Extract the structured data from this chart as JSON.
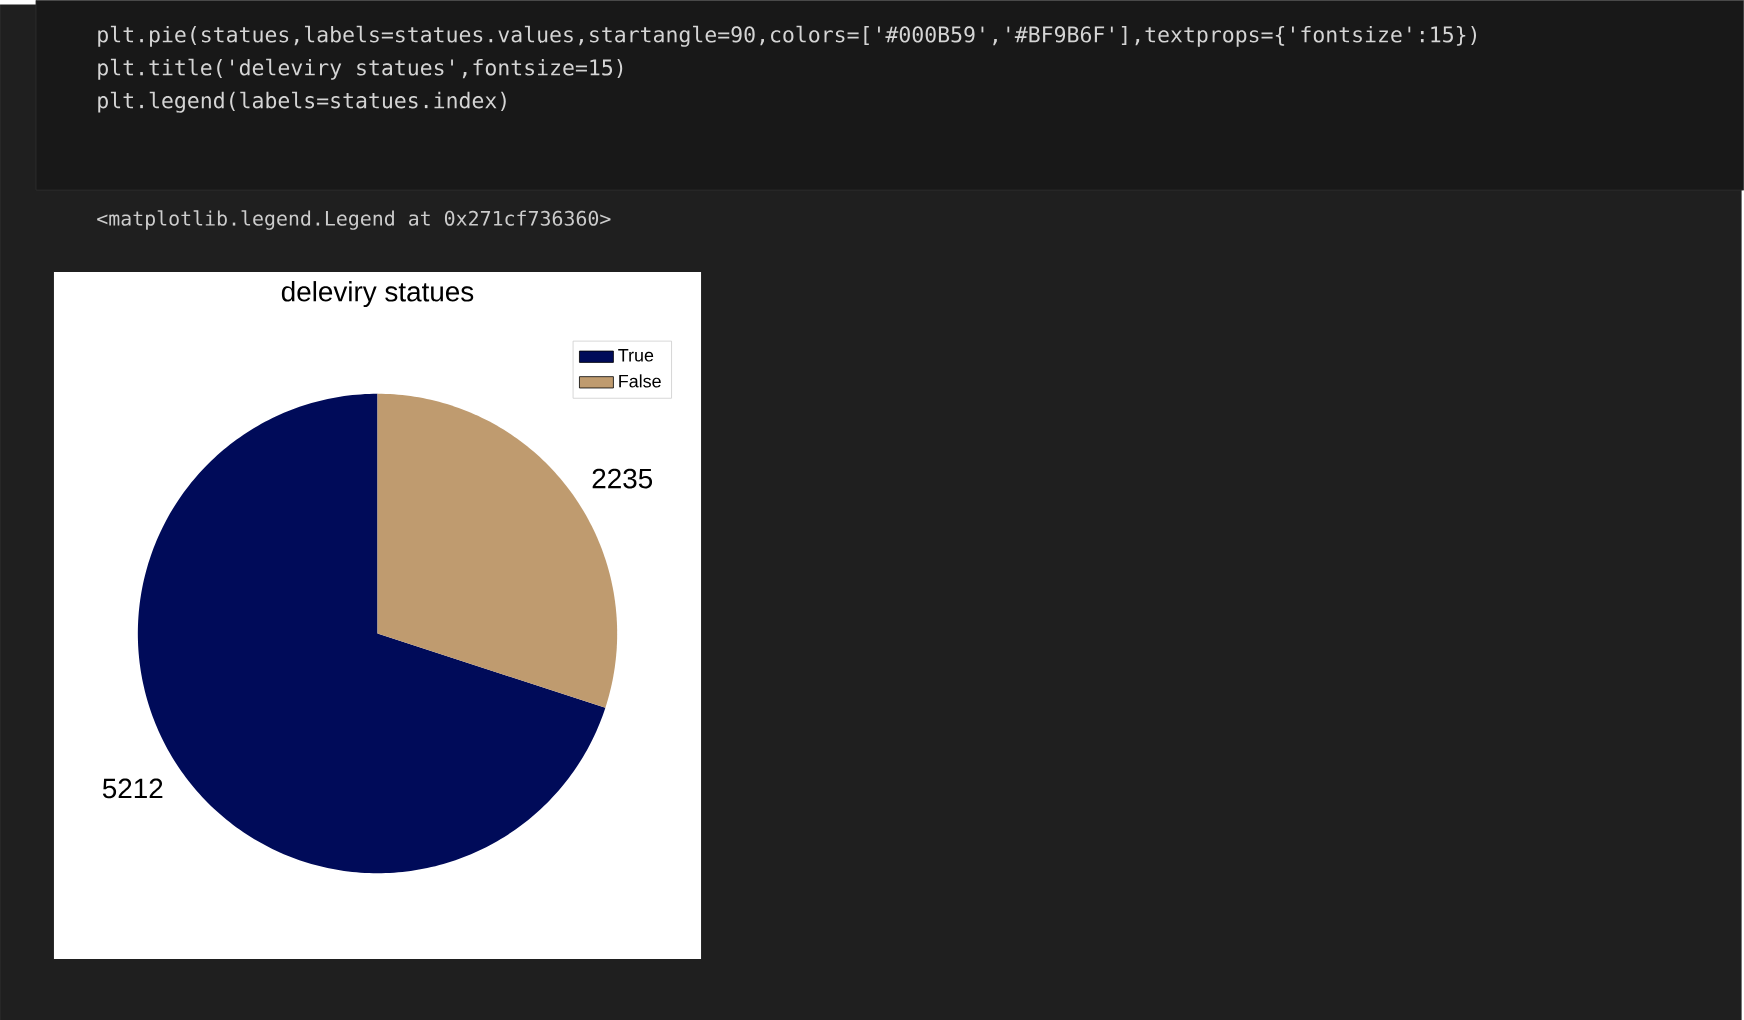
{
  "chart_data": {
    "type": "pie",
    "title": "deleviry statues",
    "categories": [
      "True",
      "False"
    ],
    "values": [
      5212,
      2235
    ],
    "colors": [
      "#000b59",
      "#bf9b6f"
    ],
    "data_labels": true,
    "legend": "top right",
    "annotations": [
      "plt.pie(statues,labels=statues.values,startangle=90,colors=['#000B59','#BF9B6F'],textprops={'fontsize':15})",
      "plt.title('deleviry statues',fontsize=15)",
      "plt.legend(labels=statues.index)",
      "<matplotlib.legend.Legend at 0x271cf736360>"
    ]
  }
}
